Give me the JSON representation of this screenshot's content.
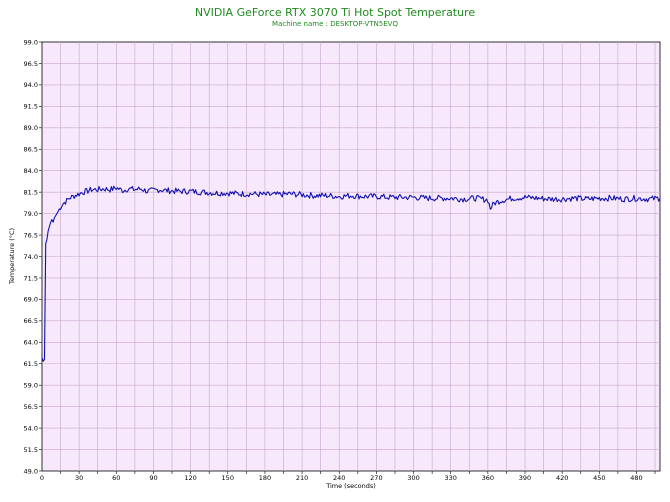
{
  "chart_data": {
    "type": "line",
    "title": "NVIDIA GeForce RTX 3070 Ti Hot Spot Temperature",
    "subtitle": "Machine name : DESKTOP-VTN5EVQ",
    "xlabel": "Time (seconds)",
    "ylabel": "Temperature (°C)",
    "xlim": [
      0,
      499
    ],
    "ylim": [
      49.0,
      99.0
    ],
    "x_ticks": [
      0,
      30,
      60,
      90,
      120,
      150,
      180,
      210,
      240,
      270,
      300,
      330,
      360,
      390,
      420,
      450,
      480
    ],
    "y_ticks": [
      "49.0",
      "51.5",
      "54.0",
      "56.5",
      "59.0",
      "61.5",
      "64.0",
      "66.5",
      "69.0",
      "71.5",
      "74.0",
      "76.5",
      "79.0",
      "81.5",
      "84.0",
      "86.5",
      "89.0",
      "91.5",
      "94.0",
      "96.5",
      "99.0"
    ],
    "grid": true,
    "colors": {
      "line": "#1010b0",
      "plot_bg": "#f7e9fb",
      "grid": "#c8a6cf",
      "title": "#1f8a1f"
    },
    "series": [
      {
        "name": "",
        "x": [
          0,
          1,
          2,
          3,
          4,
          5,
          6,
          7,
          8,
          9,
          10,
          12,
          14,
          16,
          18,
          20,
          22,
          25,
          28,
          30,
          33,
          36,
          40,
          45,
          50,
          55,
          60,
          65,
          70,
          75,
          80,
          85,
          90,
          95,
          100,
          110,
          120,
          130,
          140,
          150,
          160,
          170,
          180,
          190,
          200,
          210,
          220,
          230,
          240,
          250,
          260,
          270,
          280,
          290,
          300,
          310,
          320,
          330,
          340,
          350,
          360,
          362,
          365,
          370,
          380,
          390,
          400,
          410,
          420,
          430,
          440,
          450,
          460,
          470,
          480,
          490,
          499
        ],
        "values": [
          62.2,
          61.8,
          62.0,
          75.5,
          76.0,
          77.0,
          77.5,
          78.0,
          78.3,
          78.0,
          78.5,
          79.0,
          79.5,
          80.0,
          80.3,
          80.5,
          80.8,
          81.0,
          81.2,
          81.3,
          81.5,
          81.6,
          81.8,
          81.8,
          81.9,
          81.8,
          82.0,
          81.7,
          81.9,
          81.8,
          81.9,
          81.6,
          81.7,
          81.8,
          81.7,
          81.6,
          81.6,
          81.5,
          81.4,
          81.4,
          81.3,
          81.3,
          81.2,
          81.2,
          81.3,
          81.2,
          81.1,
          81.1,
          81.0,
          81.1,
          81.0,
          81.0,
          80.9,
          80.9,
          80.9,
          80.8,
          80.8,
          80.8,
          80.7,
          80.8,
          80.6,
          79.6,
          80.2,
          80.5,
          80.8,
          80.9,
          80.8,
          80.7,
          80.7,
          80.8,
          80.7,
          80.8,
          80.8,
          80.7,
          80.8,
          80.7,
          80.8
        ]
      }
    ]
  }
}
